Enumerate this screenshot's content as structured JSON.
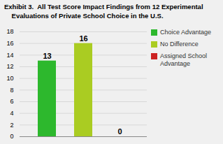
{
  "chart_data": {
    "type": "bar",
    "title": "Exhibit 3.  All Test Score Impact Findings from 12 Experimental\n    Evaluations of Private School Choice in the U.S.",
    "categories": [
      null,
      null,
      null
    ],
    "series": [
      {
        "name": "Choice Advantage",
        "color": "#2db82d",
        "values": [
          13,
          null,
          null
        ]
      },
      {
        "name": "No Difference",
        "color": "#aacc22",
        "values": [
          null,
          16,
          null
        ]
      },
      {
        "name": "Assigned School\nAdvantage",
        "color": "#cc2222",
        "values": [
          null,
          null,
          0
        ]
      }
    ],
    "ylim": [
      0,
      18
    ],
    "yticks": [
      0,
      2,
      4,
      6,
      8,
      10,
      12,
      14,
      16,
      18
    ],
    "grid": true,
    "legend": "upper right",
    "data_labels": true,
    "tick_labels": "y"
  }
}
